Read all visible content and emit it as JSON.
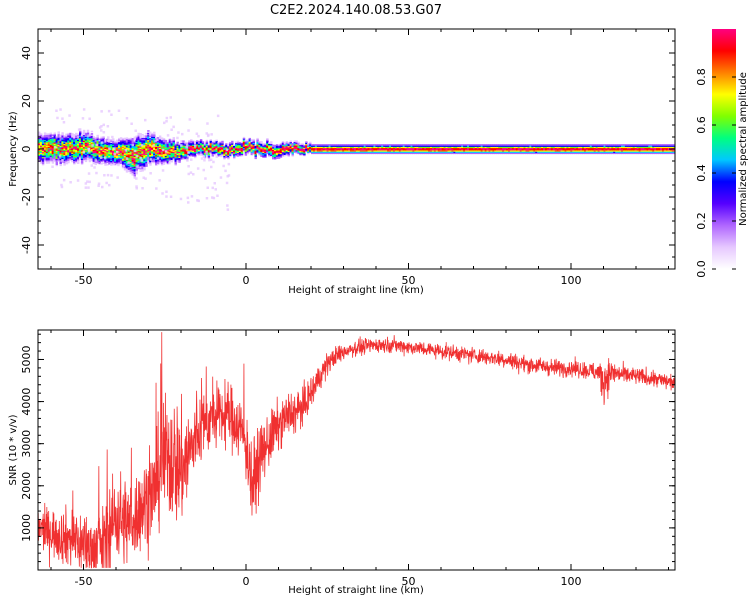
{
  "title": "C2E2.2024.140.08.53.G07",
  "colors": {
    "snr_line": "#f03030",
    "axis": "#000000",
    "background": "#ffffff",
    "colormap": [
      "#ffffff",
      "#e6c8ff",
      "#b066ff",
      "#5500ff",
      "#0000ff",
      "#00c8ff",
      "#00ff80",
      "#80ff00",
      "#ffff00",
      "#ff8000",
      "#ff0000",
      "#ff0080"
    ]
  },
  "chart_data": [
    {
      "type": "heatmap",
      "xlabel": "Height of straight line (km)",
      "ylabel": "Frequency (Hz)",
      "xlim": [
        -64,
        132
      ],
      "ylim": [
        -50,
        50
      ],
      "xticks": [
        -50,
        0,
        50,
        100
      ],
      "xtick_labels": [
        "-50",
        "0",
        "50",
        "100"
      ],
      "yticks": [
        -40,
        -20,
        0,
        20,
        40
      ],
      "ytick_labels": [
        "-40",
        "-20",
        "0",
        "20",
        "40"
      ],
      "colorbar": {
        "label": "Normalized spectral amplitude",
        "range": [
          0,
          1
        ],
        "ticks": [
          0.0,
          0.2,
          0.4,
          0.6,
          0.8
        ],
        "tick_labels": [
          "0.0",
          "0.2",
          "0.4",
          "0.6",
          "0.8"
        ]
      },
      "description_points": {
        "peak_frequency_hz": [
          [
            -62,
            0
          ],
          [
            -55,
            0
          ],
          [
            -50,
            1
          ],
          [
            -45,
            -1
          ],
          [
            -40,
            -1
          ],
          [
            -35,
            -3
          ],
          [
            -30,
            0
          ],
          [
            -25,
            -1
          ],
          [
            -20,
            -1
          ],
          [
            -15,
            0
          ],
          [
            -10,
            0
          ],
          [
            -5,
            0
          ],
          [
            0,
            1
          ],
          [
            5,
            0
          ],
          [
            10,
            0
          ],
          [
            20,
            0
          ],
          [
            40,
            0
          ],
          [
            60,
            0
          ],
          [
            80,
            0
          ],
          [
            100,
            0
          ],
          [
            110,
            0
          ],
          [
            132,
            0
          ]
        ],
        "spread_hz": [
          [
            -62,
            6
          ],
          [
            -50,
            6
          ],
          [
            -40,
            5
          ],
          [
            -35,
            8
          ],
          [
            -25,
            5
          ],
          [
            -20,
            4
          ],
          [
            -15,
            3
          ],
          [
            -5,
            3
          ],
          [
            0,
            3
          ],
          [
            10,
            3
          ],
          [
            20,
            2
          ],
          [
            50,
            2
          ],
          [
            100,
            2
          ],
          [
            132,
            2
          ]
        ]
      }
    },
    {
      "type": "line",
      "xlabel": "Height of straight line (km)",
      "ylabel": "SNR (10 * v/v)",
      "xlim": [
        -64,
        132
      ],
      "ylim": [
        0,
        5700
      ],
      "xticks": [
        -50,
        0,
        50,
        100
      ],
      "xtick_labels": [
        "-50",
        "0",
        "50",
        "100"
      ],
      "yticks": [
        1000,
        2000,
        3000,
        4000,
        5000
      ],
      "ytick_labels": [
        "1000",
        "2000",
        "3000",
        "4000",
        "5000"
      ],
      "series": [
        {
          "x": [
            -64,
            -60,
            -56,
            -52,
            -48,
            -44,
            -42,
            -40,
            -38,
            -36,
            -34,
            -32,
            -30,
            -28,
            -26,
            -24,
            -22,
            -20,
            -18,
            -16,
            -14,
            -12,
            -10,
            -8,
            -6,
            -4,
            -2,
            0,
            2,
            4,
            6,
            8,
            10,
            12,
            14,
            16,
            18,
            20,
            22,
            25,
            28,
            32,
            36,
            40,
            45,
            50,
            55,
            60,
            65,
            70,
            75,
            80,
            85,
            90,
            95,
            100,
            104,
            108,
            110,
            112,
            115,
            120,
            125,
            128,
            132
          ],
          "y": [
            1000,
            900,
            800,
            700,
            500,
            600,
            900,
            1300,
            1200,
            1100,
            1300,
            1500,
            1700,
            1900,
            2600,
            2700,
            2600,
            2400,
            2700,
            3000,
            3400,
            3500,
            3600,
            3600,
            3700,
            3600,
            3400,
            3000,
            2000,
            2600,
            2900,
            3200,
            3400,
            3600,
            3700,
            3800,
            3900,
            4200,
            4500,
            4900,
            5100,
            5250,
            5300,
            5350,
            5350,
            5300,
            5250,
            5200,
            5150,
            5100,
            5050,
            5000,
            4900,
            4850,
            4800,
            4800,
            4750,
            4700,
            4500,
            4700,
            4650,
            4600,
            4550,
            4500,
            4450
          ],
          "noise": [
            400,
            500,
            600,
            700,
            700,
            800,
            900,
            1000,
            1000,
            900,
            900,
            900,
            1000,
            1000,
            1300,
            1300,
            1400,
            1300,
            1100,
            900,
            800,
            700,
            600,
            600,
            700,
            700,
            700,
            800,
            900,
            700,
            600,
            600,
            500,
            500,
            500,
            400,
            400,
            350,
            300,
            250,
            200,
            180,
            170,
            160,
            160,
            160,
            160,
            160,
            170,
            170,
            170,
            180,
            180,
            180,
            180,
            180,
            180,
            220,
            500,
            300,
            200,
            180,
            180,
            180,
            180
          ]
        }
      ]
    }
  ]
}
